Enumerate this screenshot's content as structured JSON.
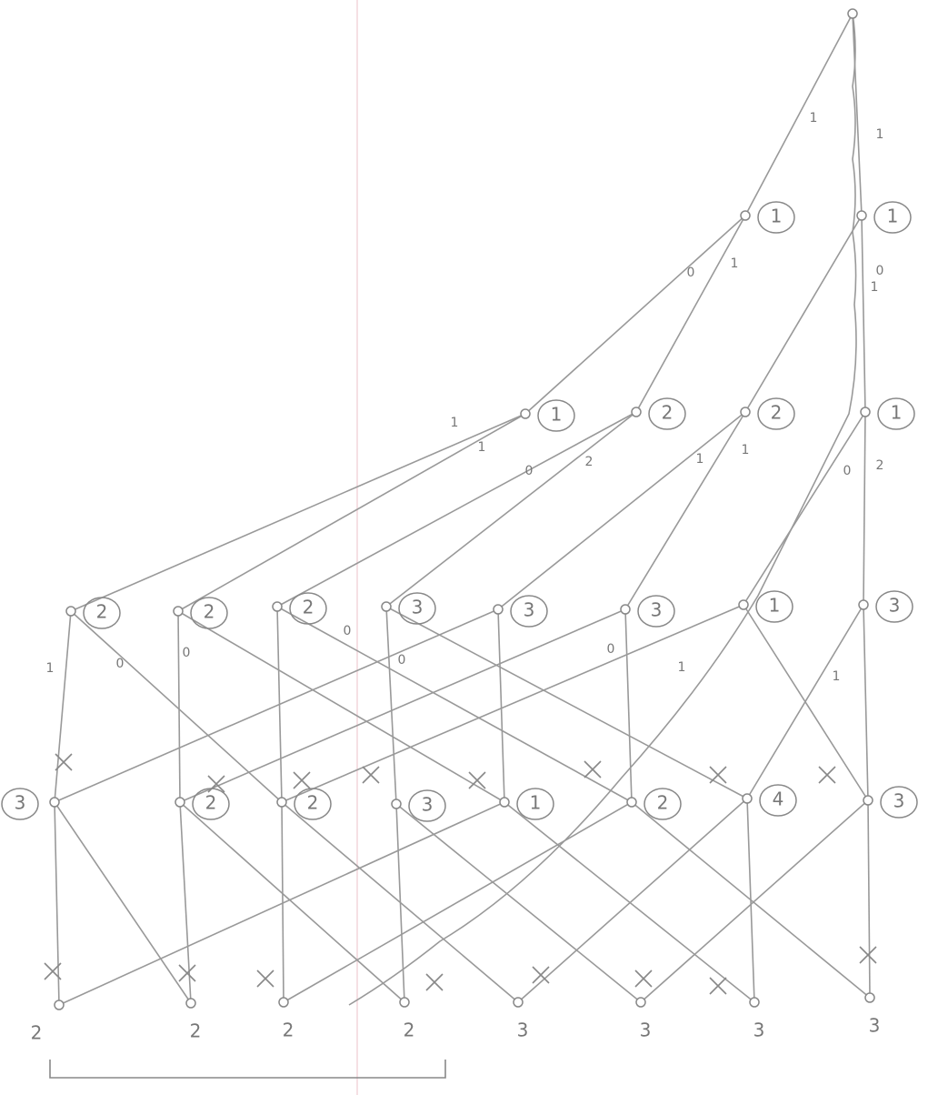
{
  "nodes": [
    {},
    {
      "label": "1"
    },
    {
      "label": "1"
    },
    {
      "label": "1"
    },
    {
      "label": "2"
    },
    {
      "label": "2"
    },
    {
      "label": "1"
    },
    {
      "label": "2"
    },
    {
      "label": "2"
    },
    {
      "label": "2"
    },
    {
      "label": "3"
    },
    {
      "label": "3"
    },
    {
      "label": "3"
    },
    {
      "label": "1"
    },
    {
      "label": "3"
    },
    {
      "label": "3"
    },
    {
      "label": "2"
    },
    {
      "label": "2"
    },
    {
      "label": "3"
    },
    {
      "label": "1"
    },
    {
      "label": "2"
    },
    {
      "label": "4"
    },
    {
      "label": "3"
    },
    {
      "label": "2"
    },
    {
      "label": "2"
    },
    {
      "label": "2"
    },
    {
      "label": "2"
    },
    {
      "label": "3"
    },
    {
      "label": "3"
    },
    {
      "label": "3"
    },
    {
      "label": "3"
    }
  ],
  "edge_labels": [
    "1",
    "1",
    "0",
    "1",
    "0",
    "1",
    "1",
    "1",
    "0",
    "2",
    "1",
    "1",
    "0",
    "2",
    "1",
    "0",
    "0",
    "0",
    "0",
    "0",
    "1",
    "1"
  ]
}
